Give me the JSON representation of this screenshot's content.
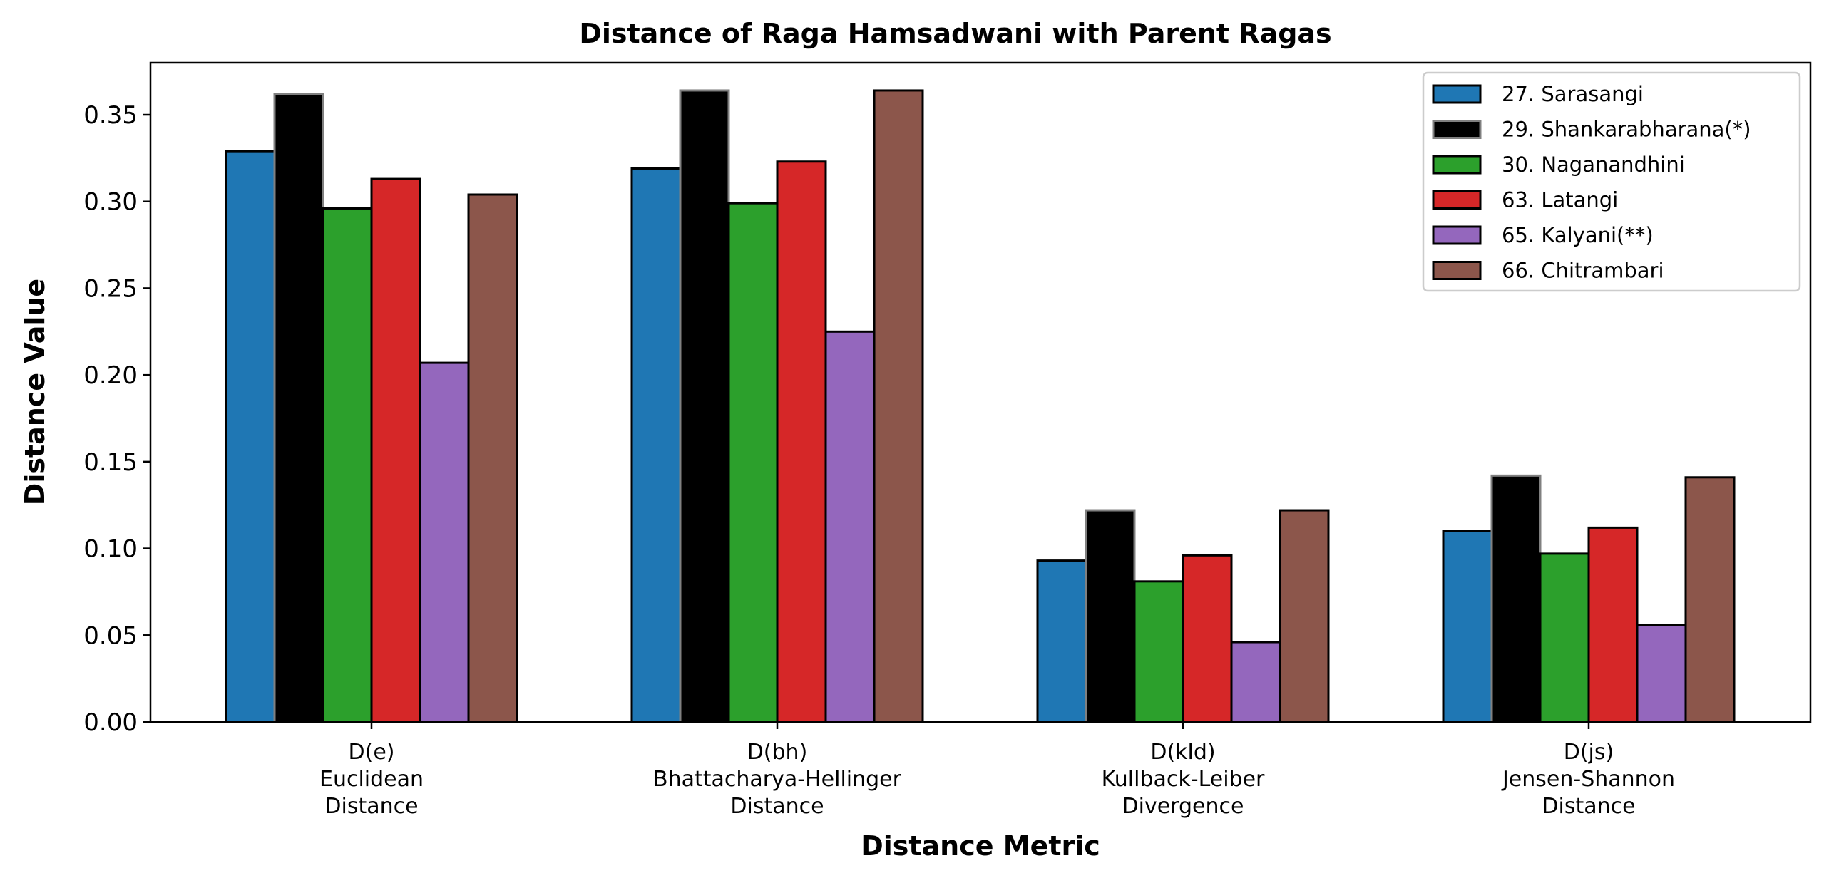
{
  "chart_data": {
    "type": "bar",
    "title": "Distance of Raga Hamsadwani with Parent Ragas",
    "xlabel": "Distance Metric",
    "ylabel": "Distance Value",
    "ylim": [
      0,
      0.38
    ],
    "yticks": [
      "0.00",
      "0.05",
      "0.10",
      "0.15",
      "0.20",
      "0.25",
      "0.30",
      "0.35"
    ],
    "categories": [
      [
        "D(e)",
        "Euclidean",
        "Distance"
      ],
      [
        "D(bh)",
        "Bhattacharya-Hellinger",
        "Distance"
      ],
      [
        "D(kld)",
        "Kullback-Leiber",
        "Divergence"
      ],
      [
        "D(js)",
        "Jensen-Shannon",
        "Distance"
      ]
    ],
    "legend_position": "upper right",
    "series": [
      {
        "name": "27. Sarasangi",
        "color": "#1f77b4",
        "edge": "#000000",
        "values": [
          0.329,
          0.319,
          0.093,
          0.11
        ]
      },
      {
        "name": "29. Shankarabharana(*)",
        "color": "#000000",
        "edge": "#808080",
        "values": [
          0.362,
          0.364,
          0.122,
          0.142
        ]
      },
      {
        "name": "30. Naganandhini",
        "color": "#2ca02c",
        "edge": "#000000",
        "values": [
          0.296,
          0.299,
          0.081,
          0.097
        ]
      },
      {
        "name": "63. Latangi",
        "color": "#d62728",
        "edge": "#000000",
        "values": [
          0.313,
          0.323,
          0.096,
          0.112
        ]
      },
      {
        "name": "65. Kalyani(**)",
        "color": "#9467bd",
        "edge": "#000000",
        "values": [
          0.207,
          0.225,
          0.046,
          0.056
        ]
      },
      {
        "name": "66. Chitrambari",
        "color": "#8c564b",
        "edge": "#000000",
        "values": [
          0.304,
          0.364,
          0.122,
          0.141
        ]
      }
    ]
  }
}
